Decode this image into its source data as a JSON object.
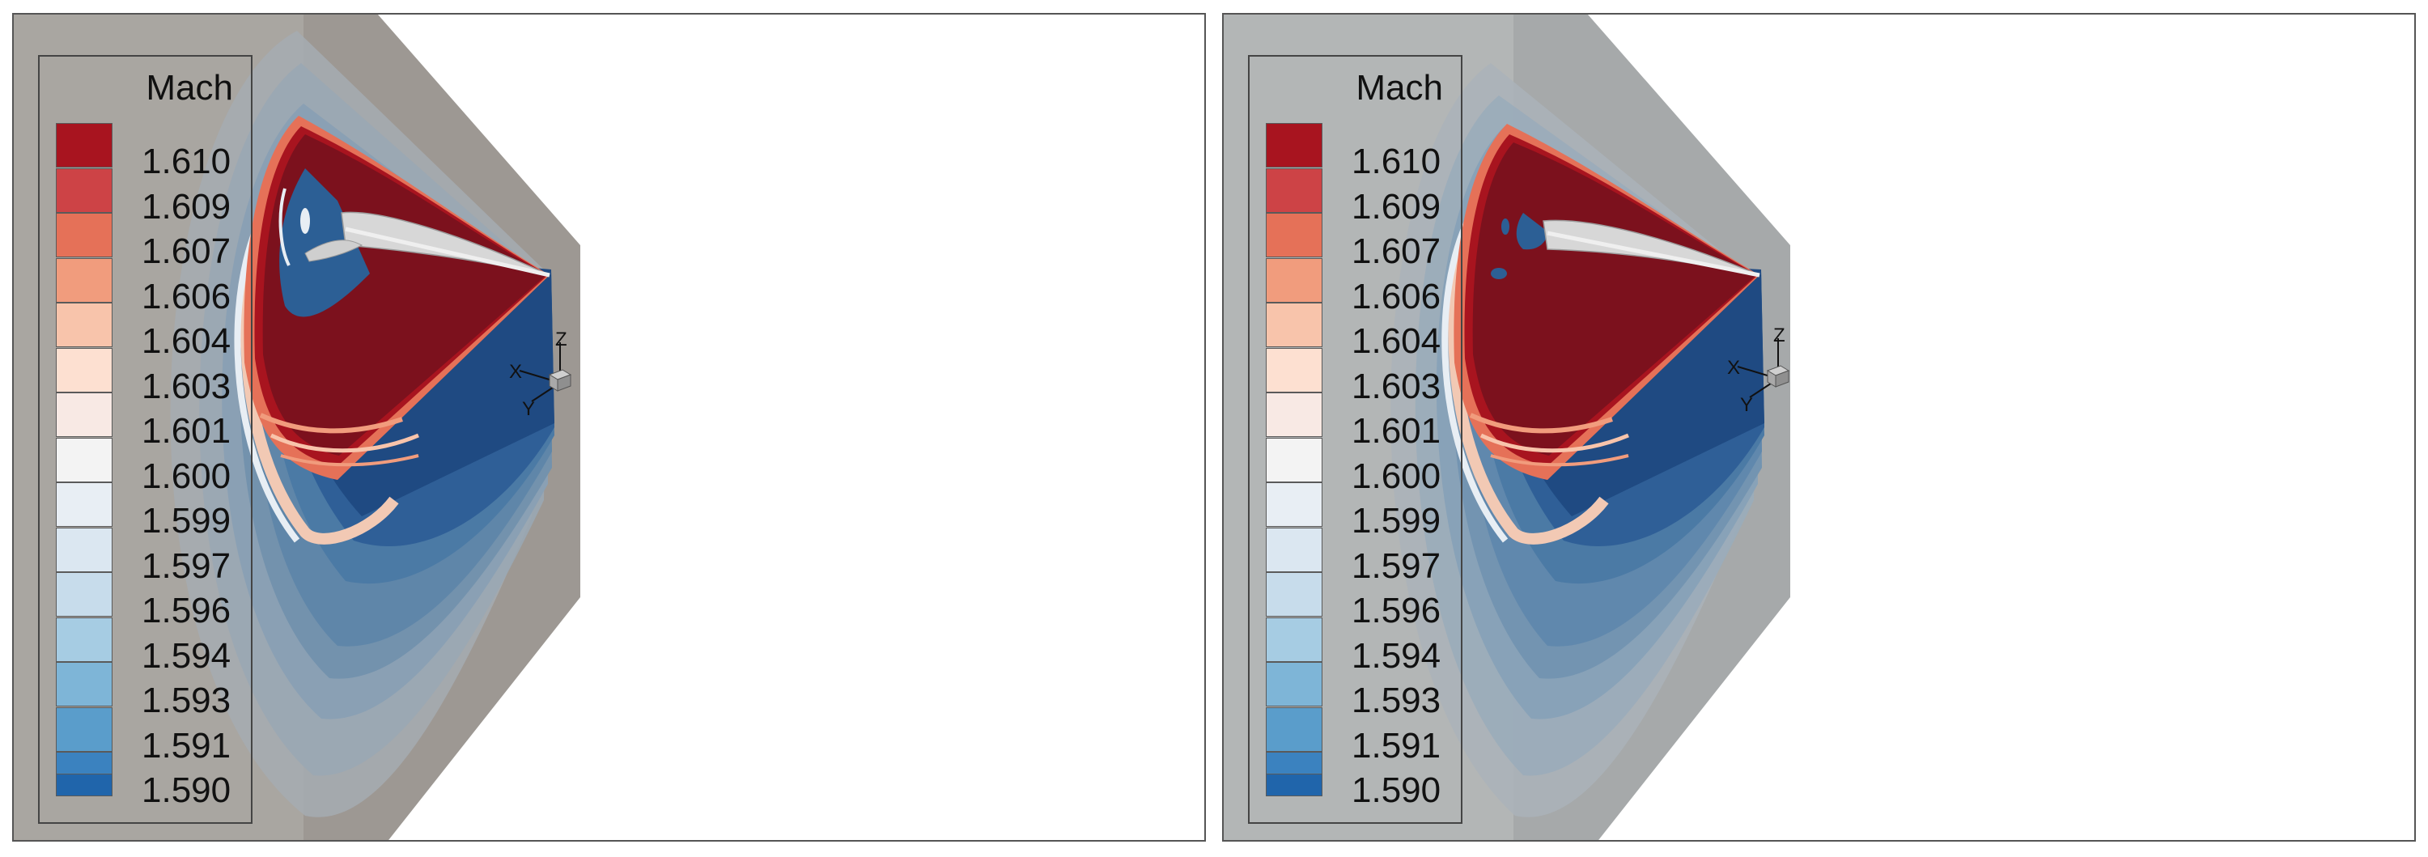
{
  "panels": [
    {
      "id": "left",
      "background": "#a9a6a1"
    },
    {
      "id": "right",
      "background": "#b3b6b6"
    }
  ],
  "legend": {
    "title": "Mach",
    "levels": [
      {
        "label": "1.610",
        "color": "#a8141f"
      },
      {
        "label": "1.609",
        "color": "#cd4346"
      },
      {
        "label": "1.607",
        "color": "#e57158"
      },
      {
        "label": "1.606",
        "color": "#f19c7d"
      },
      {
        "label": "1.604",
        "color": "#f8c4ab"
      },
      {
        "label": "1.603",
        "color": "#fde0d1"
      },
      {
        "label": "1.601",
        "color": "#f8e9e4"
      },
      {
        "label": "1.600",
        "color": "#f3f3f3"
      },
      {
        "label": "1.599",
        "color": "#e8eef4"
      },
      {
        "label": "1.597",
        "color": "#dbe7f1"
      },
      {
        "label": "1.596",
        "color": "#c7dceb"
      },
      {
        "label": "1.594",
        "color": "#a6cce3"
      },
      {
        "label": "1.593",
        "color": "#7eb5d7"
      },
      {
        "label": "1.591",
        "color": "#5a9dcb"
      },
      {
        "label": "1.590",
        "color": "#3b82bf"
      }
    ],
    "top_color": "#a8141f",
    "bottom_color": "#2065ab"
  },
  "axes": {
    "x": "X",
    "y": "Y",
    "z": "Z"
  }
}
